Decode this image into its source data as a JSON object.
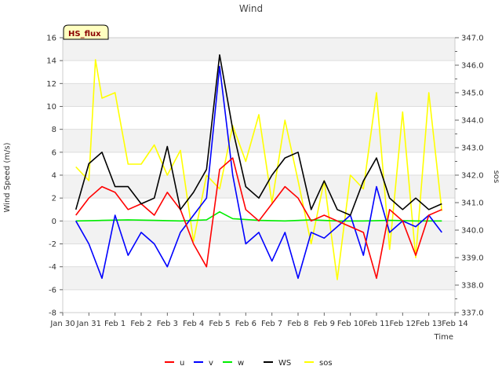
{
  "chart_data": {
    "type": "line",
    "title": "Wind",
    "site_label": "HS_flux",
    "xlabel": "Time",
    "ylabel": "Wind Speed (m/s)",
    "y2label": "sos",
    "ylim": [
      -8,
      16
    ],
    "y2lim": [
      337.0,
      347.0
    ],
    "xlim": [
      "2010-01-30",
      "2010-02-14"
    ],
    "y_ticks": [
      -8,
      -6,
      -4,
      -2,
      0,
      2,
      4,
      6,
      8,
      10,
      12,
      14,
      16
    ],
    "y2_ticks": [
      "337.0",
      "338.0",
      "339.0",
      "340.0",
      "341.0",
      "342.0",
      "343.0",
      "344.0",
      "345.0",
      "346.0",
      "347.0"
    ],
    "x_ticks": [
      "Jan 30",
      "Jan 31",
      "Feb 1",
      "Feb 2",
      "Feb 3",
      "Feb 4",
      "Feb 5",
      "Feb 6",
      "Feb 7",
      "Feb 8",
      "Feb 9",
      "Feb 10",
      "Feb 11",
      "Feb 12",
      "Feb 13",
      "Feb 14"
    ],
    "grid": true,
    "legend_position": "bottom",
    "series": [
      {
        "name": "u",
        "color": "#ff0000",
        "axis": "left",
        "x": [
          "2010-01-30T12:00",
          "2010-01-31T00:00",
          "2010-01-31T12:00",
          "2010-02-01T00:00",
          "2010-02-01T12:00",
          "2010-02-02T00:00",
          "2010-02-02T12:00",
          "2010-02-03T00:00",
          "2010-02-03T12:00",
          "2010-02-04T00:00",
          "2010-02-04T12:00",
          "2010-02-05T00:00",
          "2010-02-05T12:00",
          "2010-02-06T00:00",
          "2010-02-06T12:00",
          "2010-02-07T00:00",
          "2010-02-07T12:00",
          "2010-02-08T00:00",
          "2010-02-08T12:00",
          "2010-02-09T00:00",
          "2010-02-09T12:00",
          "2010-02-10T00:00",
          "2010-02-10T12:00",
          "2010-02-11T00:00",
          "2010-02-11T12:00",
          "2010-02-12T00:00",
          "2010-02-12T12:00",
          "2010-02-13T00:00",
          "2010-02-13T12:00"
        ],
        "values": [
          0.5,
          2.0,
          3.0,
          2.5,
          1.0,
          1.5,
          0.5,
          2.5,
          1.0,
          -2.0,
          -4.0,
          4.5,
          5.5,
          1.0,
          0.0,
          1.5,
          3.0,
          2.0,
          0.0,
          0.5,
          0.0,
          -0.5,
          -1.0,
          -5.0,
          1.0,
          0.0,
          -3.0,
          0.5,
          1.0
        ]
      },
      {
        "name": "v",
        "color": "#0000ff",
        "axis": "left",
        "x": [
          "2010-01-30T12:00",
          "2010-01-31T00:00",
          "2010-01-31T12:00",
          "2010-02-01T00:00",
          "2010-02-01T12:00",
          "2010-02-02T00:00",
          "2010-02-02T12:00",
          "2010-02-03T00:00",
          "2010-02-03T12:00",
          "2010-02-04T00:00",
          "2010-02-04T12:00",
          "2010-02-05T00:00",
          "2010-02-05T12:00",
          "2010-02-06T00:00",
          "2010-02-06T12:00",
          "2010-02-07T00:00",
          "2010-02-07T12:00",
          "2010-02-08T00:00",
          "2010-02-08T12:00",
          "2010-02-09T00:00",
          "2010-02-09T12:00",
          "2010-02-10T00:00",
          "2010-02-10T12:00",
          "2010-02-11T00:00",
          "2010-02-11T12:00",
          "2010-02-12T00:00",
          "2010-02-12T12:00",
          "2010-02-13T00:00",
          "2010-02-13T12:00"
        ],
        "values": [
          0.0,
          -2.0,
          -5.0,
          0.5,
          -3.0,
          -1.0,
          -2.0,
          -4.0,
          -1.0,
          0.5,
          2.0,
          13.5,
          4.0,
          -2.0,
          -1.0,
          -3.5,
          -1.0,
          -5.0,
          -1.0,
          -1.5,
          -0.5,
          0.5,
          -3.0,
          3.0,
          -1.0,
          0.0,
          -0.5,
          0.5,
          -1.0
        ]
      },
      {
        "name": "w",
        "color": "#00ee00",
        "axis": "left",
        "x": [
          "2010-01-30T12:00",
          "2010-01-31T12:00",
          "2010-02-01T12:00",
          "2010-02-02T12:00",
          "2010-02-03T12:00",
          "2010-02-04T12:00",
          "2010-02-05T00:00",
          "2010-02-05T12:00",
          "2010-02-06T12:00",
          "2010-02-07T12:00",
          "2010-02-08T12:00",
          "2010-02-09T12:00",
          "2010-02-10T12:00",
          "2010-02-11T12:00",
          "2010-02-12T12:00",
          "2010-02-13T12:00"
        ],
        "values": [
          0.0,
          0.05,
          0.1,
          0.05,
          0.0,
          0.1,
          0.8,
          0.2,
          0.05,
          0.0,
          0.1,
          0.0,
          0.0,
          0.05,
          0.0,
          0.0
        ]
      },
      {
        "name": "WS",
        "color": "#000000",
        "axis": "left",
        "x": [
          "2010-01-30T12:00",
          "2010-01-31T00:00",
          "2010-01-31T12:00",
          "2010-02-01T00:00",
          "2010-02-01T12:00",
          "2010-02-02T00:00",
          "2010-02-02T12:00",
          "2010-02-03T00:00",
          "2010-02-03T12:00",
          "2010-02-04T00:00",
          "2010-02-04T12:00",
          "2010-02-05T00:00",
          "2010-02-05T12:00",
          "2010-02-06T00:00",
          "2010-02-06T12:00",
          "2010-02-07T00:00",
          "2010-02-07T12:00",
          "2010-02-08T00:00",
          "2010-02-08T12:00",
          "2010-02-09T00:00",
          "2010-02-09T12:00",
          "2010-02-10T00:00",
          "2010-02-10T12:00",
          "2010-02-11T00:00",
          "2010-02-11T12:00",
          "2010-02-12T00:00",
          "2010-02-12T12:00",
          "2010-02-13T00:00",
          "2010-02-13T12:00"
        ],
        "values": [
          1.0,
          5.0,
          6.0,
          3.0,
          3.0,
          1.5,
          2.0,
          6.5,
          1.0,
          2.5,
          4.5,
          14.5,
          8.0,
          3.0,
          2.0,
          4.0,
          5.5,
          6.0,
          1.0,
          3.5,
          1.0,
          0.5,
          3.5,
          5.5,
          2.0,
          1.0,
          2.0,
          1.0,
          1.5
        ]
      },
      {
        "name": "sos",
        "color": "#ffff00",
        "axis": "right",
        "x": [
          "2010-01-30T12:00",
          "2010-01-31T00:00",
          "2010-01-31T06:00",
          "2010-01-31T12:00",
          "2010-02-01T00:00",
          "2010-02-01T12:00",
          "2010-02-02T00:00",
          "2010-02-02T12:00",
          "2010-02-03T00:00",
          "2010-02-03T12:00",
          "2010-02-04T00:00",
          "2010-02-04T12:00",
          "2010-02-05T00:00",
          "2010-02-05T12:00",
          "2010-02-06T00:00",
          "2010-02-06T12:00",
          "2010-02-07T00:00",
          "2010-02-07T12:00",
          "2010-02-08T00:00",
          "2010-02-08T12:00",
          "2010-02-09T00:00",
          "2010-02-09T12:00",
          "2010-02-10T00:00",
          "2010-02-10T12:00",
          "2010-02-11T00:00",
          "2010-02-11T12:00",
          "2010-02-12T00:00",
          "2010-02-12T12:00",
          "2010-02-13T00:00",
          "2010-02-13T12:00"
        ],
        "values": [
          342.3,
          341.8,
          346.2,
          344.8,
          345.0,
          342.4,
          342.4,
          343.1,
          342.0,
          342.9,
          339.6,
          342.0,
          341.5,
          343.8,
          342.5,
          344.2,
          341.0,
          344.0,
          341.8,
          339.5,
          341.8,
          338.2,
          342.0,
          341.5,
          345.0,
          339.3,
          344.3,
          339.0,
          345.0,
          340.7
        ]
      }
    ]
  }
}
